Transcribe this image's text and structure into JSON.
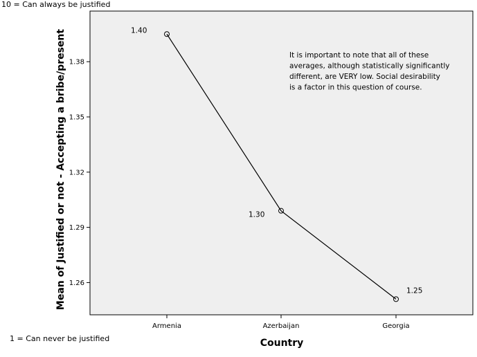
{
  "notes": {
    "top": "10 = Can always be justified",
    "bottom": "1 = Can never be justified"
  },
  "chart_data": {
    "type": "line",
    "title": "",
    "xlabel": "Country",
    "ylabel": "Mean of Justified or not - Accepting a bribe/present",
    "categories": [
      "Armenia",
      "Azerbaijan",
      "Georgia"
    ],
    "values": [
      1.395,
      1.299,
      1.251
    ],
    "data_labels": [
      "1.40",
      "1.30",
      "1.25"
    ],
    "yticks": [
      1.26,
      1.29,
      1.32,
      1.35,
      1.38
    ],
    "ytick_labels": [
      "1.26",
      "1.29",
      "1.32",
      "1.35",
      "1.38"
    ],
    "ylim": [
      1.2425,
      1.4075
    ],
    "grid": false,
    "background_color": "#efefef",
    "line_color": "#000000",
    "annotation": [
      "It is important to note that all of these",
      "averages, although statistically significantly",
      "different, are VERY low.  Social desirability",
      "is a factor in this question of course."
    ]
  }
}
